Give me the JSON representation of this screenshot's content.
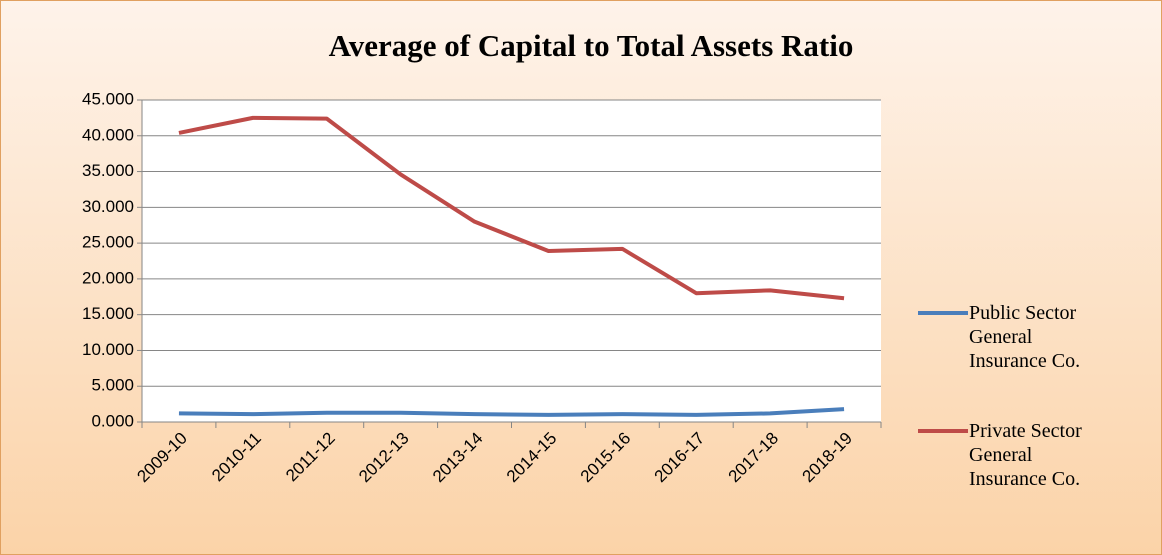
{
  "chart_data": {
    "type": "line",
    "title": "Average of Capital to Total Assets Ratio",
    "categories": [
      "2009-10",
      "2010-11",
      "2011-12",
      "2012-13",
      "2013-14",
      "2014-15",
      "2015-16",
      "2016-17",
      "2017-18",
      "2018-19"
    ],
    "series": [
      {
        "name": "Public Sector General Insurance Co.",
        "color": "#4a7ebb",
        "values": [
          1.2,
          1.1,
          1.3,
          1.3,
          1.1,
          1.0,
          1.1,
          1.0,
          1.2,
          1.8
        ]
      },
      {
        "name": "Private Sector General Insurance Co.",
        "color": "#be4b48",
        "values": [
          40.4,
          42.5,
          42.4,
          34.6,
          28.0,
          23.9,
          24.2,
          18.0,
          18.4,
          17.3
        ]
      }
    ],
    "ylim": [
      0,
      45
    ],
    "yticks": [
      {
        "value": 0,
        "label": "0.000"
      },
      {
        "value": 5,
        "label": "5.000"
      },
      {
        "value": 10,
        "label": "10.000"
      },
      {
        "value": 15,
        "label": "15.000"
      },
      {
        "value": 20,
        "label": "20.000"
      },
      {
        "value": 25,
        "label": "25.000"
      },
      {
        "value": 30,
        "label": "30.000"
      },
      {
        "value": 35,
        "label": "35.000"
      },
      {
        "value": 40,
        "label": "40.000"
      },
      {
        "value": 45,
        "label": "45.000"
      }
    ],
    "grid": true,
    "legend": "right"
  }
}
